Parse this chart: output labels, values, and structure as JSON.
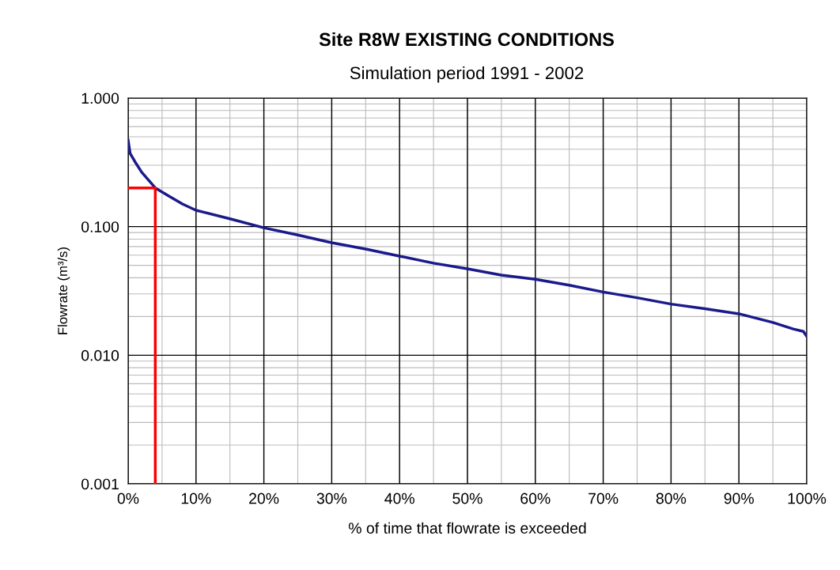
{
  "chart_data": {
    "type": "line",
    "title": "Site R8W EXISTING CONDITIONS",
    "subtitle": "Simulation period 1991 - 2002",
    "xlabel": "% of time that flowrate is exceeded",
    "ylabel": "Flowrate (m³/s)",
    "log": "y",
    "grid": true,
    "marker": "none",
    "line_style": "solid",
    "xlim": [
      0,
      100
    ],
    "xticks": [
      {
        "value": 0,
        "label": "0%"
      },
      {
        "value": 10,
        "label": "10%"
      },
      {
        "value": 20,
        "label": "20%"
      },
      {
        "value": 30,
        "label": "30%"
      },
      {
        "value": 40,
        "label": "40%"
      },
      {
        "value": 50,
        "label": "50%"
      },
      {
        "value": 60,
        "label": "60%"
      },
      {
        "value": 70,
        "label": "70%"
      },
      {
        "value": 80,
        "label": "80%"
      },
      {
        "value": 90,
        "label": "90%"
      },
      {
        "value": 100,
        "label": "100%"
      }
    ],
    "ylim": [
      0.001,
      1
    ],
    "yticks": [
      {
        "value": 0.001,
        "label": "0.001"
      },
      {
        "value": 0.01,
        "label": "0.010"
      },
      {
        "value": 0.1,
        "label": "0.100"
      },
      {
        "value": 1,
        "label": "1.000"
      }
    ],
    "series": [
      {
        "color": "#1a1a8c",
        "x": [
          0,
          0.3,
          1,
          2,
          4,
          6,
          8,
          10,
          15,
          20,
          25,
          30,
          35,
          40,
          45,
          50,
          55,
          60,
          65,
          70,
          75,
          80,
          85,
          90,
          95,
          98,
          99.5,
          100
        ],
        "values": [
          0.47,
          0.37,
          0.32,
          0.265,
          0.2,
          0.173,
          0.15,
          0.134,
          0.115,
          0.098,
          0.086,
          0.075,
          0.067,
          0.059,
          0.052,
          0.047,
          0.042,
          0.039,
          0.035,
          0.031,
          0.028,
          0.025,
          0.023,
          0.021,
          0.018,
          0.016,
          0.0153,
          0.014
        ]
      },
      {
        "color": "#ff0000",
        "x": [
          0,
          4,
          4
        ],
        "values": [
          0.2,
          0.2,
          0.001
        ]
      }
    ]
  }
}
